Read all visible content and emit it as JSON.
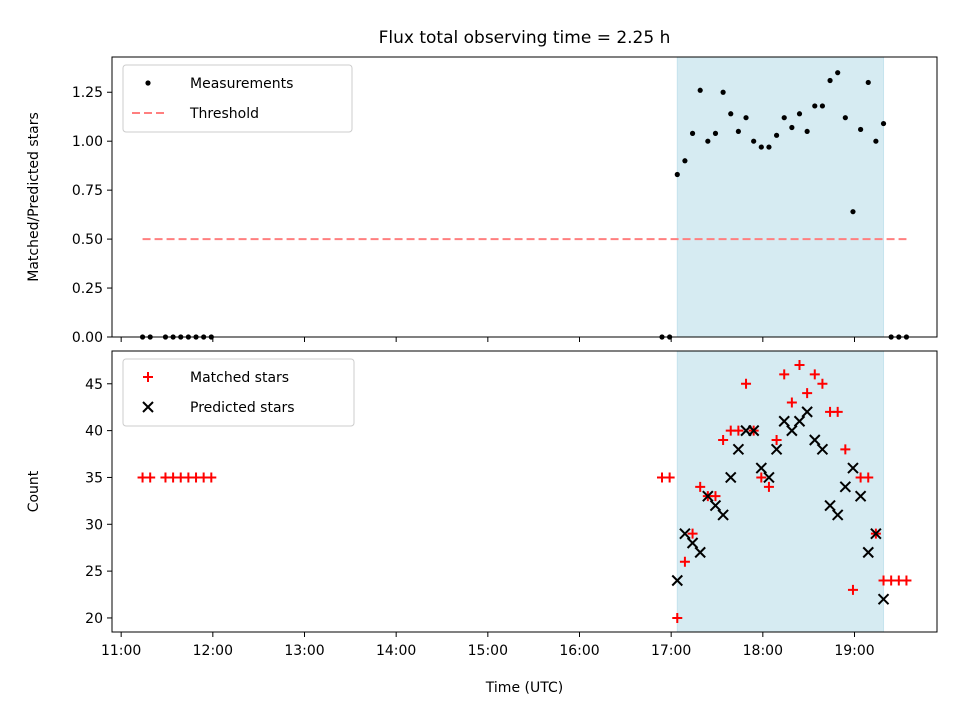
{
  "chart_data": [
    {
      "type": "scatter",
      "title": "Flux total observing time = 2.25 h",
      "xlabel": "",
      "ylabel": "Matched/Predicted stars",
      "xlim": [
        "10:54",
        "19:54"
      ],
      "ylim": [
        0,
        1.43
      ],
      "yticks": [
        "0.00",
        "0.25",
        "0.50",
        "0.75",
        "1.00",
        "1.25"
      ],
      "grid": false,
      "legend_position": "upper-left",
      "shaded_interval": {
        "start": "17:04",
        "end": "19:19",
        "color": "#add8e6"
      },
      "series": [
        {
          "name": "Measurements",
          "marker": "dot",
          "color": "#000000",
          "x": [
            "11:14",
            "11:19",
            "11:29",
            "11:34",
            "11:39",
            "11:44",
            "11:49",
            "11:54",
            "11:59",
            "16:54",
            "16:59",
            "17:04",
            "17:09",
            "17:14",
            "17:19",
            "17:24",
            "17:29",
            "17:34",
            "17:39",
            "17:44",
            "17:49",
            "17:54",
            "17:59",
            "18:04",
            "18:09",
            "18:14",
            "18:19",
            "18:24",
            "18:29",
            "18:34",
            "18:39",
            "18:44",
            "18:49",
            "18:54",
            "18:59",
            "19:04",
            "19:09",
            "19:14",
            "19:19",
            "19:24",
            "19:29",
            "19:34"
          ],
          "y": [
            0,
            0,
            0,
            0,
            0,
            0,
            0,
            0,
            0,
            0,
            0,
            0.83,
            0.9,
            1.04,
            1.26,
            1.0,
            1.04,
            1.25,
            1.14,
            1.05,
            1.12,
            1.0,
            0.97,
            0.97,
            1.03,
            1.12,
            1.07,
            1.14,
            1.05,
            1.18,
            1.18,
            1.31,
            1.35,
            1.12,
            0.64,
            1.06,
            1.3,
            1.0,
            1.09,
            0,
            0,
            0
          ]
        },
        {
          "name": "Threshold",
          "style": "dashed",
          "color": "#ff7f7f",
          "x": [
            "11:14",
            "19:34"
          ],
          "y": [
            0.5,
            0.5
          ]
        }
      ]
    },
    {
      "type": "scatter",
      "xlabel": "Time (UTC)",
      "ylabel": "Count",
      "xlim": [
        "10:54",
        "19:54"
      ],
      "ylim": [
        18.5,
        48.5
      ],
      "xticks": [
        "11:00",
        "12:00",
        "13:00",
        "14:00",
        "15:00",
        "16:00",
        "17:00",
        "18:00",
        "19:00"
      ],
      "yticks": [
        "20",
        "25",
        "30",
        "35",
        "40",
        "45"
      ],
      "grid": false,
      "legend_position": "upper-left",
      "shaded_interval": {
        "start": "17:04",
        "end": "19:19",
        "color": "#add8e6"
      },
      "series": [
        {
          "name": "Matched stars",
          "marker": "plus",
          "color": "#ff0000",
          "x": [
            "11:14",
            "11:19",
            "11:29",
            "11:34",
            "11:39",
            "11:44",
            "11:49",
            "11:54",
            "11:59",
            "16:54",
            "16:59",
            "17:04",
            "17:09",
            "17:14",
            "17:19",
            "17:24",
            "17:29",
            "17:34",
            "17:39",
            "17:44",
            "17:49",
            "17:54",
            "17:59",
            "18:04",
            "18:09",
            "18:14",
            "18:19",
            "18:24",
            "18:29",
            "18:34",
            "18:39",
            "18:44",
            "18:49",
            "18:54",
            "18:59",
            "19:04",
            "19:09",
            "19:14",
            "19:19",
            "19:24",
            "19:29",
            "19:34"
          ],
          "y": [
            35,
            35,
            35,
            35,
            35,
            35,
            35,
            35,
            35,
            35,
            35,
            20,
            26,
            29,
            34,
            33,
            33,
            39,
            40,
            40,
            45,
            40,
            35,
            34,
            39,
            46,
            43,
            47,
            44,
            46,
            45,
            42,
            42,
            38,
            23,
            35,
            35,
            29,
            24,
            24,
            24,
            24
          ]
        },
        {
          "name": "Predicted stars",
          "marker": "x",
          "color": "#000000",
          "x": [
            "17:04",
            "17:09",
            "17:14",
            "17:19",
            "17:24",
            "17:29",
            "17:34",
            "17:39",
            "17:44",
            "17:49",
            "17:54",
            "17:59",
            "18:04",
            "18:09",
            "18:14",
            "18:19",
            "18:24",
            "18:29",
            "18:34",
            "18:39",
            "18:44",
            "18:49",
            "18:54",
            "18:59",
            "19:04",
            "19:09",
            "19:14",
            "19:19"
          ],
          "y": [
            24,
            29,
            28,
            27,
            33,
            32,
            31,
            35,
            38,
            40,
            40,
            36,
            35,
            38,
            41,
            40,
            41,
            42,
            39,
            38,
            32,
            31,
            34,
            36,
            33,
            27,
            29,
            22
          ]
        }
      ]
    }
  ]
}
